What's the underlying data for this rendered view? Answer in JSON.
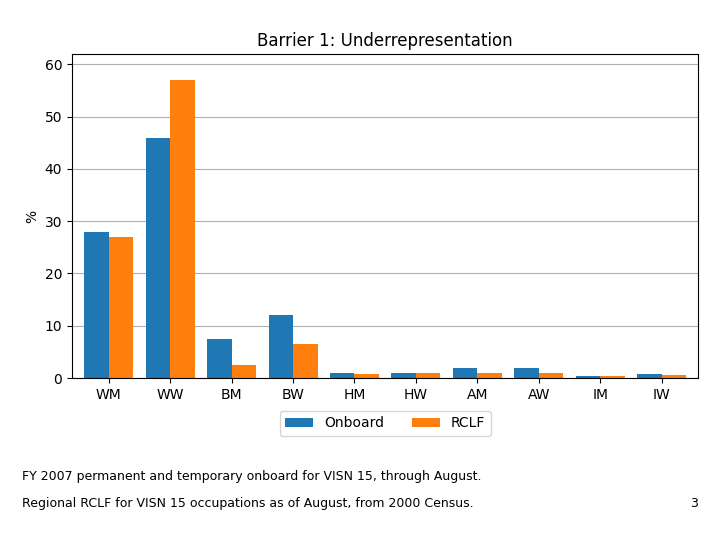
{
  "chart_data": {
    "type": "bar",
    "title": "Barrier 1: Underrepresentation",
    "ylabel": "%",
    "categories": [
      "WM",
      "WW",
      "BM",
      "BW",
      "HM",
      "HW",
      "AM",
      "AW",
      "IM",
      "IW"
    ],
    "series": [
      {
        "name": "Onboard",
        "values": [
          28,
          46,
          7.5,
          12,
          1,
          1,
          2,
          2,
          0.4,
          0.7
        ]
      },
      {
        "name": "RCLF",
        "values": [
          27,
          57,
          2.5,
          6.5,
          0.8,
          1,
          1,
          1,
          0.3,
          0.5
        ]
      }
    ],
    "ylim": [
      0,
      62
    ],
    "yticks": [
      0,
      10,
      20,
      30,
      40,
      50,
      60
    ],
    "grid": true,
    "legend": "upper center",
    "annotations": [
      "FY 2007 permanent and temporary onboard for VISN 15, through August.",
      "Regional RCLF for VISN 15 occupations as of August, from 2000 Census.",
      "3"
    ]
  }
}
